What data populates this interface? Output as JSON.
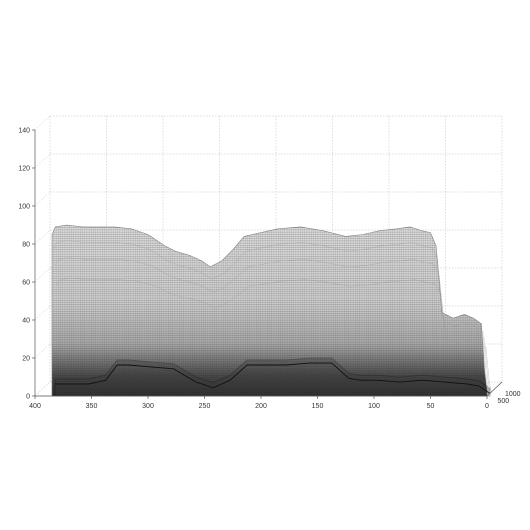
{
  "chart_data": {
    "type": "3d-surface-wireframe",
    "title": "",
    "xlabel": "",
    "ylabel": "",
    "zlabel": "",
    "x_ticks": [
      400,
      350,
      300,
      250,
      200,
      150,
      100,
      50,
      0
    ],
    "xlim": [
      0,
      400
    ],
    "y_ticks": [
      0,
      500,
      1000
    ],
    "ylim": [
      0,
      1000
    ],
    "z_ticks": [
      0,
      20,
      40,
      60,
      80,
      100,
      120,
      140
    ],
    "zlim": [
      0,
      140
    ],
    "grid": true,
    "colormap": "grayscale",
    "front_profile": {
      "x": [
        385,
        382,
        372,
        358,
        345,
        330,
        315,
        300,
        285,
        275,
        263,
        252,
        245,
        235,
        225,
        215,
        200,
        185,
        165,
        145,
        125,
        110,
        95,
        80,
        68,
        58,
        50,
        45,
        40,
        30,
        20,
        12,
        5,
        2,
        0
      ],
      "z": [
        85,
        89,
        90,
        89,
        89,
        89,
        88,
        85,
        79,
        76,
        74,
        71,
        68,
        71,
        77,
        84,
        86,
        88,
        89,
        87,
        84,
        85,
        87,
        88,
        89,
        87,
        86,
        79,
        44,
        41,
        43,
        41,
        38,
        13,
        3
      ]
    },
    "back_profile": {
      "x": [
        385,
        370,
        355,
        340,
        330,
        320,
        300,
        280,
        260,
        245,
        230,
        215,
        200,
        180,
        160,
        140,
        125,
        115,
        100,
        80,
        60,
        40,
        20,
        10,
        0
      ],
      "z": [
        10,
        10,
        10,
        12,
        20,
        20,
        19,
        18,
        11,
        8,
        12,
        20,
        20,
        20,
        21,
        21,
        13,
        12,
        12,
        11,
        12,
        11,
        10,
        9,
        5
      ]
    }
  }
}
